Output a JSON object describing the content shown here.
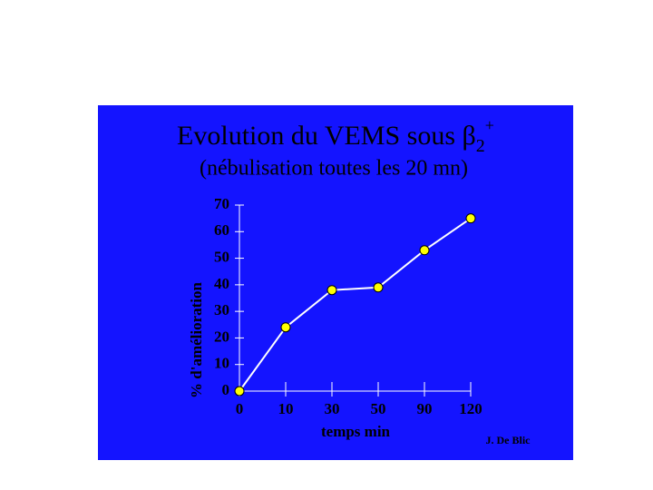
{
  "chart_data": {
    "type": "line",
    "title": "Evolution du VEMS sous β",
    "title_subscript": "2",
    "title_superscript": "+",
    "subtitle": "(nébulisation toutes les 20 mn)",
    "x_label": "temps min",
    "y_label": "% d'amélioration",
    "credit": "J. De Blic",
    "categories": [
      "0",
      "10",
      "30",
      "50",
      "90",
      "120"
    ],
    "series": [
      {
        "color": "#ffffff",
        "marker_color": "#ffff00",
        "values": [
          0,
          24,
          38,
          39,
          53,
          65
        ]
      }
    ],
    "ylim": [
      0,
      70
    ],
    "yticks": [
      0,
      10,
      20,
      30,
      40,
      50,
      60,
      70
    ],
    "background": "#1414ff"
  }
}
